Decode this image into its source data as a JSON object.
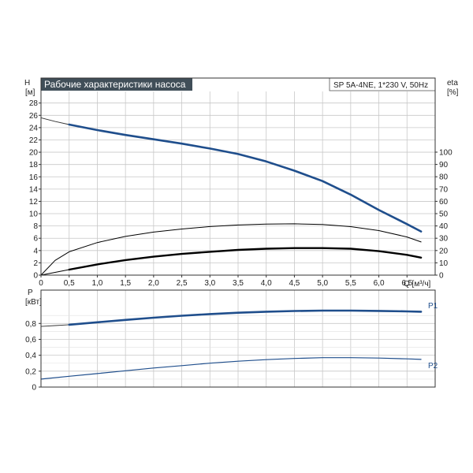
{
  "colors": {
    "curve_dark": "#1f4e8c",
    "curve_black": "#000000",
    "grid": "#c8c8c8",
    "title_bg": "#404e58",
    "title_text": "#ffffff",
    "series_label": "#1f4e8c"
  },
  "chart_data": [
    {
      "type": "line",
      "title": "Рабочие характеристики насоса",
      "subtitle": "SP 5A-4NE, 1*230 V, 50Hz",
      "xlabel": "Q [м³/ч]",
      "x_ticks": [
        "0",
        "0,5",
        "1,0",
        "1,5",
        "2,0",
        "2,5",
        "3,0",
        "3,5",
        "4,0",
        "4,5",
        "5,0",
        "5,5",
        "6,0",
        "6,5"
      ],
      "xlim": [
        0,
        7
      ],
      "ylabel_left": "H",
      "ylabel_left_unit": "[м]",
      "ylim_left": [
        0,
        28
      ],
      "y_ticks_left": [
        "0",
        "2",
        "4",
        "6",
        "8",
        "10",
        "12",
        "14",
        "16",
        "18",
        "20",
        "22",
        "24",
        "26",
        "28"
      ],
      "ylabel_right": "eta",
      "ylabel_right_unit": "[%]",
      "ylim_right": [
        0,
        100
      ],
      "y_ticks_right": [
        "0",
        "10",
        "20",
        "30",
        "40",
        "50",
        "60",
        "70",
        "80",
        "90",
        "100"
      ],
      "grid": true,
      "series": [
        {
          "axis": "left",
          "style": "thin",
          "segment": "extension",
          "x": [
            0,
            0.25,
            0.5
          ],
          "y": [
            25.6,
            25.0,
            24.5
          ]
        },
        {
          "axis": "left",
          "style": "thick-blue",
          "x": [
            0.5,
            1.0,
            1.5,
            2.0,
            2.5,
            3.0,
            3.5,
            4.0,
            4.5,
            5.0,
            5.5,
            6.0,
            6.5,
            6.75
          ],
          "y": [
            24.5,
            23.6,
            22.8,
            22.1,
            21.4,
            20.6,
            19.7,
            18.5,
            17.0,
            15.3,
            13.1,
            10.6,
            8.3,
            7.1
          ]
        },
        {
          "axis": "right",
          "style": "thin-black",
          "x": [
            0,
            0.25,
            0.5,
            1.0,
            1.5,
            2.0,
            2.5,
            3.0,
            3.5,
            4.0,
            4.5,
            5.0,
            5.5,
            6.0,
            6.5,
            6.75
          ],
          "y": [
            0,
            12,
            19,
            26.5,
            31.5,
            35,
            37.5,
            39.5,
            40.8,
            41.5,
            41.7,
            41.2,
            39.4,
            36.2,
            31.0,
            27.0
          ]
        },
        {
          "axis": "left",
          "style": "thin-black",
          "segment": "extension",
          "x": [
            0,
            0.25,
            0.5
          ],
          "y": [
            0,
            0.45,
            0.9
          ]
        },
        {
          "axis": "left",
          "style": "thick-black",
          "x": [
            0.5,
            1.0,
            1.5,
            2.0,
            2.5,
            3.0,
            3.5,
            4.0,
            4.5,
            5.0,
            5.5,
            6.0,
            6.5,
            6.75
          ],
          "y": [
            0.9,
            1.75,
            2.45,
            3.0,
            3.45,
            3.8,
            4.1,
            4.3,
            4.4,
            4.4,
            4.3,
            3.9,
            3.3,
            2.85
          ]
        }
      ]
    },
    {
      "type": "line",
      "ylabel": "P",
      "ylabel_unit": "[кВт]",
      "ylim": [
        0,
        1.0
      ],
      "y_ticks": [
        "0",
        "0,2",
        "0,4",
        "0,6",
        "0,8"
      ],
      "xlim": [
        0,
        7
      ],
      "grid": true,
      "series": [
        {
          "name": "P1",
          "style": "thin",
          "segment": "extension",
          "x": [
            0,
            0.25,
            0.5
          ],
          "y": [
            0.762,
            0.773,
            0.784
          ]
        },
        {
          "name": "P1",
          "style": "thick-blue",
          "x": [
            0.5,
            1.0,
            1.5,
            2.0,
            2.5,
            3.0,
            3.5,
            4.0,
            4.5,
            5.0,
            5.5,
            6.0,
            6.5,
            6.75
          ],
          "y": [
            0.784,
            0.815,
            0.845,
            0.872,
            0.897,
            0.918,
            0.935,
            0.948,
            0.957,
            0.962,
            0.962,
            0.958,
            0.952,
            0.948
          ]
        },
        {
          "name": "P2",
          "style": "thin-blue",
          "x": [
            0,
            0.5,
            1.0,
            1.5,
            2.0,
            2.5,
            3.0,
            3.5,
            4.0,
            4.5,
            5.0,
            5.5,
            6.0,
            6.5,
            6.75
          ],
          "y": [
            0.1,
            0.136,
            0.17,
            0.205,
            0.24,
            0.27,
            0.3,
            0.325,
            0.345,
            0.36,
            0.37,
            0.37,
            0.365,
            0.355,
            0.348
          ]
        }
      ],
      "series_labels": [
        "P1",
        "P2"
      ]
    }
  ]
}
